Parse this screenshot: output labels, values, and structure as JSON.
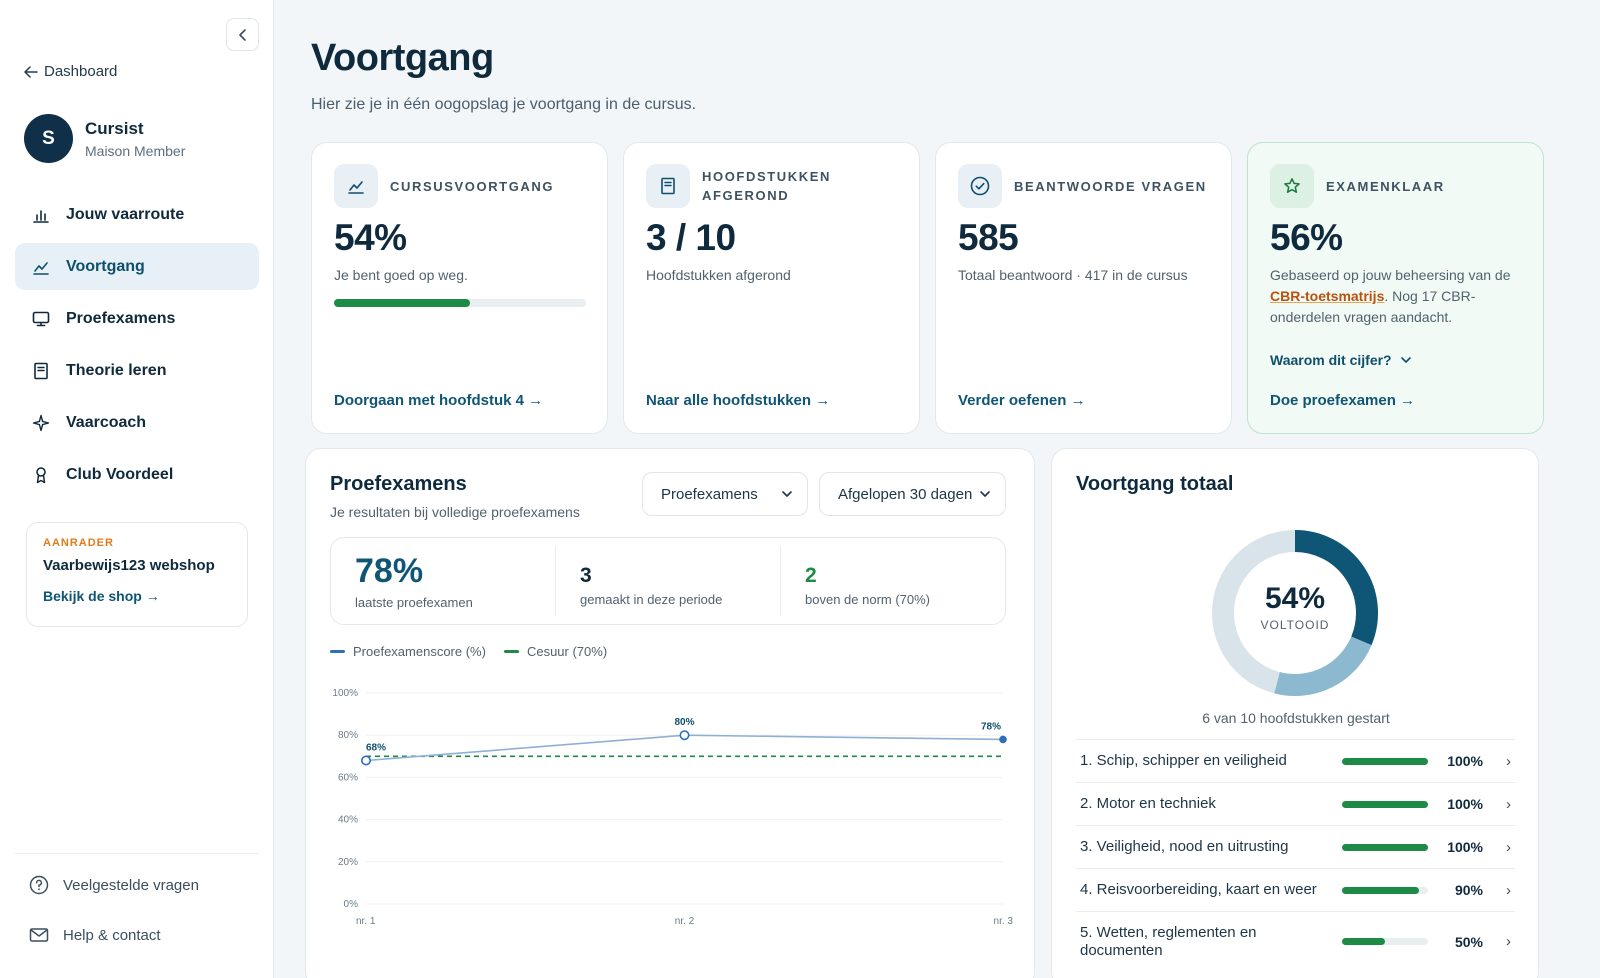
{
  "sidebar": {
    "collapse_icon": "chevron-left-icon",
    "back_label": "Dashboard",
    "profile": {
      "initial": "S",
      "name": "Cursist",
      "role": "Maison Member"
    },
    "nav": [
      {
        "label": "Jouw vaarroute",
        "icon": "bar-chart-icon",
        "active": false
      },
      {
        "label": "Voortgang",
        "icon": "trend-line-icon",
        "active": true
      },
      {
        "label": "Proefexamens",
        "icon": "monitor-icon",
        "active": false
      },
      {
        "label": "Theorie leren",
        "icon": "book-icon",
        "active": false
      },
      {
        "label": "Vaarcoach",
        "icon": "sparkle-icon",
        "active": false
      },
      {
        "label": "Club Voordeel",
        "icon": "badge-icon",
        "active": false
      }
    ],
    "promo": {
      "tag": "AANRADER",
      "title": "Vaarbewijs123 webshop",
      "link": "Bekijk de shop →"
    },
    "footer": [
      {
        "label": "Veelgestelde vragen",
        "icon": "question-circle-icon"
      },
      {
        "label": "Help & contact",
        "icon": "mail-icon"
      }
    ]
  },
  "page": {
    "title": "Voortgang",
    "subtitle": "Hier zie je in één oogopslag je voortgang in de cursus."
  },
  "cards": [
    {
      "label": "CURSUSVOORTGANG",
      "icon": "trend-line-icon",
      "value": "54%",
      "desc": "Je bent goed op weg.",
      "progress": 0.54,
      "link": "Doorgaan met hoofdstuk 4 →"
    },
    {
      "label": "HOOFDSTUKKEN AFGEROND",
      "icon": "book-icon",
      "value": "3 / 10",
      "desc": "Hoofdstukken afgerond",
      "link": "Naar alle hoofdstukken →"
    },
    {
      "label": "BEANTWOORDE VRAGEN",
      "icon": "check-circle-icon",
      "value": "585",
      "desc": "Totaal beantwoord · 417 in de cursus",
      "link": "Verder oefenen →"
    },
    {
      "label": "EXAMENKLAAR",
      "icon": "star-icon",
      "value": "56%",
      "desc_pre": "Gebaseerd op jouw beheersing van de ",
      "desc_link": "CBR-toetsmatrijs",
      "desc_post": ". Nog 17 CBR-onderdelen vragen aandacht.",
      "why": "Waarom dit cijfer?",
      "link": "Doe proefexamen →"
    }
  ],
  "exams": {
    "title": "Proefexamens",
    "subtitle": "Je resultaten bij volledige proefexamens",
    "filter_type": "Proefexamens",
    "filter_period": "Afgelopen 30 dagen",
    "metrics": [
      {
        "value": "78%",
        "label": "laatste proefexamen"
      },
      {
        "value": "3",
        "label": "gemaakt in deze periode"
      },
      {
        "value": "2",
        "label": "boven de norm (70%)"
      }
    ],
    "legend": [
      {
        "label": "Proefexamenscore (%)",
        "color": "#2f6fb7"
      },
      {
        "label": "Cesuur (70%)",
        "color": "#1d8a45"
      }
    ]
  },
  "chart_data": {
    "type": "line",
    "x": [
      "nr. 1",
      "nr. 2",
      "nr. 3"
    ],
    "series": [
      {
        "name": "Proefexamenscore (%)",
        "values": [
          68,
          80,
          78
        ],
        "labels": [
          "68%",
          "80%",
          "78%"
        ],
        "color": "#2f6fb7"
      },
      {
        "name": "Cesuur (70%)",
        "values": [
          70,
          70,
          70
        ],
        "color": "#1d8a45",
        "dashed": true
      }
    ],
    "yticks": [
      "100%",
      "80%",
      "60%",
      "40%",
      "20%",
      "0%"
    ],
    "ylim": [
      0,
      100
    ],
    "grid": true,
    "legend": "top-left"
  },
  "overall": {
    "title": "Voortgang totaal",
    "donut_value": "54%",
    "donut_label": "VOLTOOID",
    "donut_fraction": 0.54,
    "summary": "6 van 10 hoofdstukken gestart",
    "chapters": [
      {
        "name": "1. Schip, schipper en veiligheid",
        "pct": "100%",
        "progress": 1.0
      },
      {
        "name": "2. Motor en techniek",
        "pct": "100%",
        "progress": 1.0
      },
      {
        "name": "3. Veiligheid, nood en uitrusting",
        "pct": "100%",
        "progress": 1.0
      },
      {
        "name": "4. Reisvoorbereiding, kaart en weer",
        "pct": "90%",
        "progress": 0.9
      },
      {
        "name": "5. Wetten, reglementen en documenten",
        "pct": "50%",
        "progress": 0.5
      }
    ]
  }
}
